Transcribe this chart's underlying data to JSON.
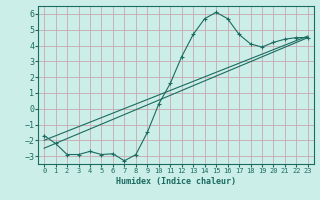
{
  "xlabel": "Humidex (Indice chaleur)",
  "ylabel": "",
  "background_color": "#cceee8",
  "grid_color": "#c8a8b0",
  "line_color": "#1a6b60",
  "xlim": [
    -0.5,
    23.5
  ],
  "ylim": [
    -3.5,
    6.5
  ],
  "yticks": [
    -3,
    -2,
    -1,
    0,
    1,
    2,
    3,
    4,
    5,
    6
  ],
  "xticks": [
    0,
    1,
    2,
    3,
    4,
    5,
    6,
    7,
    8,
    9,
    10,
    11,
    12,
    13,
    14,
    15,
    16,
    17,
    18,
    19,
    20,
    21,
    22,
    23
  ],
  "series1_x": [
    0,
    1,
    2,
    3,
    4,
    5,
    6,
    7,
    8,
    9,
    10,
    11,
    12,
    13,
    14,
    15,
    16,
    17,
    18,
    19,
    20,
    21,
    22,
    23
  ],
  "series1_y": [
    -1.7,
    -2.2,
    -2.9,
    -2.9,
    -2.7,
    -2.9,
    -2.85,
    -3.3,
    -2.9,
    -1.5,
    0.3,
    1.6,
    3.3,
    4.7,
    5.7,
    6.1,
    5.7,
    4.7,
    4.1,
    3.9,
    4.2,
    4.4,
    4.5,
    4.5
  ],
  "series2_x": [
    0,
    23
  ],
  "series2_y": [
    -2.5,
    4.5
  ],
  "series3_x": [
    0,
    23
  ],
  "series3_y": [
    -2.0,
    4.6
  ]
}
